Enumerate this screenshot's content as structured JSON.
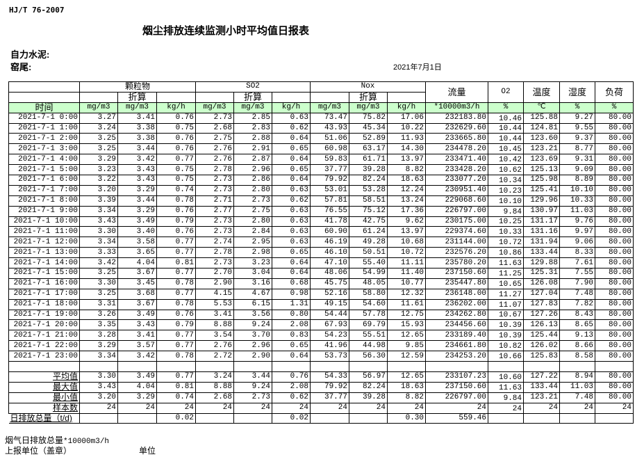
{
  "header": {
    "standard": "HJ/T  76-2007",
    "title": "烟尘排放连续监测小时平均值日报表",
    "company": "自力水泥:",
    "kiln": "窑尾:",
    "date": "2021年7月1日"
  },
  "columns": {
    "groups": [
      "颗粒物",
      "SO2",
      "Nox",
      "流量",
      "O2",
      "温度",
      "湿度",
      "负荷"
    ],
    "converted": "折算",
    "time_label": "时间",
    "units": [
      "mg/m3",
      "mg/m3",
      "kg/h",
      "mg/m3",
      "mg/m3",
      "kg/h",
      "mg/m3",
      "mg/m3",
      "kg/h",
      "*10000m3/h",
      "%",
      "℃",
      "%",
      "%"
    ]
  },
  "colors": {
    "unit_row_bg": "#ccffcc",
    "border": "#000000"
  },
  "rows": [
    {
      "time": "2021-7-1 0:00",
      "values": [
        "3.27",
        "3.41",
        "0.76",
        "2.73",
        "2.85",
        "0.63",
        "73.47",
        "75.82",
        "17.06",
        "232183.80",
        "10.46",
        "125.88",
        "9.27",
        "80.00"
      ]
    },
    {
      "time": "2021-7-1 1:00",
      "values": [
        "3.24",
        "3.38",
        "0.75",
        "2.68",
        "2.83",
        "0.62",
        "43.93",
        "45.34",
        "10.22",
        "232629.60",
        "10.44",
        "124.81",
        "9.55",
        "80.00"
      ]
    },
    {
      "time": "2021-7-1 2:00",
      "values": [
        "3.25",
        "3.38",
        "0.76",
        "2.75",
        "2.88",
        "0.64",
        "51.06",
        "52.89",
        "11.93",
        "233665.80",
        "10.44",
        "123.60",
        "9.37",
        "80.00"
      ]
    },
    {
      "time": "2021-7-1 3:00",
      "values": [
        "3.25",
        "3.44",
        "0.76",
        "2.76",
        "2.91",
        "0.65",
        "60.98",
        "63.17",
        "14.30",
        "234478.20",
        "10.45",
        "123.21",
        "8.77",
        "80.00"
      ]
    },
    {
      "time": "2021-7-1 4:00",
      "values": [
        "3.29",
        "3.42",
        "0.77",
        "2.76",
        "2.87",
        "0.64",
        "59.83",
        "61.71",
        "13.97",
        "233471.40",
        "10.42",
        "123.69",
        "9.31",
        "80.00"
      ]
    },
    {
      "time": "2021-7-1 5:00",
      "values": [
        "3.23",
        "3.43",
        "0.75",
        "2.78",
        "2.96",
        "0.65",
        "37.77",
        "39.28",
        "8.82",
        "233428.20",
        "10.62",
        "125.13",
        "9.09",
        "80.00"
      ]
    },
    {
      "time": "2021-7-1 6:00",
      "values": [
        "3.22",
        "3.43",
        "0.75",
        "2.73",
        "2.86",
        "0.64",
        "79.92",
        "82.24",
        "18.63",
        "233077.20",
        "10.34",
        "125.98",
        "8.89",
        "80.00"
      ]
    },
    {
      "time": "2021-7-1 7:00",
      "values": [
        "3.20",
        "3.29",
        "0.74",
        "2.73",
        "2.80",
        "0.63",
        "53.01",
        "53.28",
        "12.24",
        "230951.40",
        "10.23",
        "125.41",
        "10.10",
        "80.00"
      ]
    },
    {
      "time": "2021-7-1 8:00",
      "values": [
        "3.39",
        "3.44",
        "0.78",
        "2.71",
        "2.73",
        "0.62",
        "57.81",
        "58.51",
        "13.24",
        "229068.60",
        "10.10",
        "129.96",
        "10.33",
        "80.00"
      ]
    },
    {
      "time": "2021-7-1 9:00",
      "values": [
        "3.34",
        "3.29",
        "0.76",
        "2.77",
        "2.75",
        "0.63",
        "76.55",
        "75.12",
        "17.36",
        "226797.00",
        "9.84",
        "130.97",
        "11.03",
        "80.00"
      ]
    },
    {
      "time": "2021-7-1 10:00",
      "values": [
        "3.43",
        "3.49",
        "0.79",
        "2.73",
        "2.80",
        "0.63",
        "41.78",
        "42.75",
        "9.62",
        "230175.00",
        "10.25",
        "131.17",
        "9.76",
        "80.00"
      ]
    },
    {
      "time": "2021-7-1 11:00",
      "values": [
        "3.30",
        "3.40",
        "0.76",
        "2.73",
        "2.84",
        "0.63",
        "60.90",
        "61.24",
        "13.97",
        "229374.60",
        "10.33",
        "131.16",
        "9.97",
        "80.00"
      ]
    },
    {
      "time": "2021-7-1 12:00",
      "values": [
        "3.34",
        "3.58",
        "0.77",
        "2.74",
        "2.95",
        "0.63",
        "46.19",
        "49.28",
        "10.68",
        "231144.00",
        "10.72",
        "131.94",
        "9.06",
        "80.00"
      ]
    },
    {
      "time": "2021-7-1 13:00",
      "values": [
        "3.33",
        "3.65",
        "0.77",
        "2.78",
        "2.98",
        "0.65",
        "46.10",
        "50.51",
        "10.72",
        "232576.20",
        "10.86",
        "133.44",
        "8.33",
        "80.00"
      ]
    },
    {
      "time": "2021-7-1 14:00",
      "values": [
        "3.42",
        "4.04",
        "0.81",
        "2.73",
        "3.23",
        "0.64",
        "47.10",
        "55.40",
        "11.11",
        "235780.20",
        "11.63",
        "129.88",
        "7.61",
        "80.00"
      ]
    },
    {
      "time": "2021-7-1 15:00",
      "values": [
        "3.25",
        "3.67",
        "0.77",
        "2.70",
        "3.04",
        "0.64",
        "48.06",
        "54.99",
        "11.40",
        "237150.60",
        "11.25",
        "125.31",
        "7.55",
        "80.00"
      ]
    },
    {
      "time": "2021-7-1 16:00",
      "values": [
        "3.30",
        "3.45",
        "0.78",
        "2.90",
        "3.16",
        "0.68",
        "45.75",
        "48.05",
        "10.77",
        "235447.80",
        "10.65",
        "126.08",
        "7.90",
        "80.00"
      ]
    },
    {
      "time": "2021-7-1 17:00",
      "values": [
        "3.25",
        "3.68",
        "0.77",
        "4.15",
        "4.67",
        "0.98",
        "52.16",
        "58.80",
        "12.32",
        "236148.00",
        "11.27",
        "127.04",
        "7.48",
        "80.00"
      ]
    },
    {
      "time": "2021-7-1 18:00",
      "values": [
        "3.31",
        "3.67",
        "0.78",
        "5.53",
        "6.15",
        "1.31",
        "49.15",
        "54.60",
        "11.61",
        "236202.00",
        "11.07",
        "127.83",
        "7.82",
        "80.00"
      ]
    },
    {
      "time": "2021-7-1 19:00",
      "values": [
        "3.26",
        "3.49",
        "0.76",
        "3.41",
        "3.56",
        "0.80",
        "54.44",
        "57.78",
        "12.75",
        "234262.80",
        "10.67",
        "127.26",
        "8.43",
        "80.00"
      ]
    },
    {
      "time": "2021-7-1 20:00",
      "values": [
        "3.35",
        "3.43",
        "0.79",
        "8.88",
        "9.24",
        "2.08",
        "67.93",
        "69.79",
        "15.93",
        "234456.60",
        "10.39",
        "126.13",
        "8.65",
        "80.00"
      ]
    },
    {
      "time": "2021-7-1 21:00",
      "values": [
        "3.28",
        "3.41",
        "0.77",
        "3.54",
        "3.70",
        "0.83",
        "54.23",
        "55.51",
        "12.65",
        "233189.40",
        "10.39",
        "125.44",
        "9.13",
        "80.00"
      ]
    },
    {
      "time": "2021-7-1 22:00",
      "values": [
        "3.29",
        "3.57",
        "0.77",
        "2.76",
        "2.96",
        "0.65",
        "41.96",
        "44.98",
        "9.85",
        "234661.80",
        "10.82",
        "126.02",
        "8.66",
        "80.00"
      ]
    },
    {
      "time": "2021-7-1 23:00",
      "values": [
        "3.34",
        "3.42",
        "0.78",
        "2.72",
        "2.90",
        "0.64",
        "53.73",
        "56.30",
        "12.59",
        "234253.20",
        "10.66",
        "125.83",
        "8.58",
        "80.00"
      ]
    }
  ],
  "stats": [
    {
      "label": "平均值",
      "values": [
        "3.30",
        "3.49",
        "0.77",
        "3.24",
        "3.44",
        "0.76",
        "54.33",
        "56.97",
        "12.65",
        "233107.23",
        "10.60",
        "127.22",
        "8.94",
        "80.00"
      ]
    },
    {
      "label": "最大值",
      "values": [
        "3.43",
        "4.04",
        "0.81",
        "8.88",
        "9.24",
        "2.08",
        "79.92",
        "82.24",
        "18.63",
        "237150.60",
        "11.63",
        "133.44",
        "11.03",
        "80.00"
      ]
    },
    {
      "label": "最小值",
      "values": [
        "3.20",
        "3.29",
        "0.74",
        "2.68",
        "2.73",
        "0.62",
        "37.77",
        "39.28",
        "8.82",
        "226797.00",
        "9.84",
        "123.21",
        "7.48",
        "80.00"
      ]
    },
    {
      "label": "样本数",
      "values": [
        "24",
        "24",
        "24",
        "24",
        "24",
        "24",
        "24",
        "24",
        "24",
        "24",
        "24",
        "24",
        "24",
        "24"
      ]
    }
  ],
  "daily_total": {
    "label": "日排放总量（t/d)",
    "values": [
      "",
      "",
      "0.02",
      "",
      "",
      "0.02",
      "",
      "",
      "0.30",
      "559.46",
      "",
      "",
      "",
      ""
    ]
  },
  "footer": {
    "flue_gas_total_label": "烟气日排放总量",
    "flue_gas_total_unit": "*10000m3/h",
    "reporting_unit": "上报单位（盖章）",
    "unit": "单位"
  }
}
